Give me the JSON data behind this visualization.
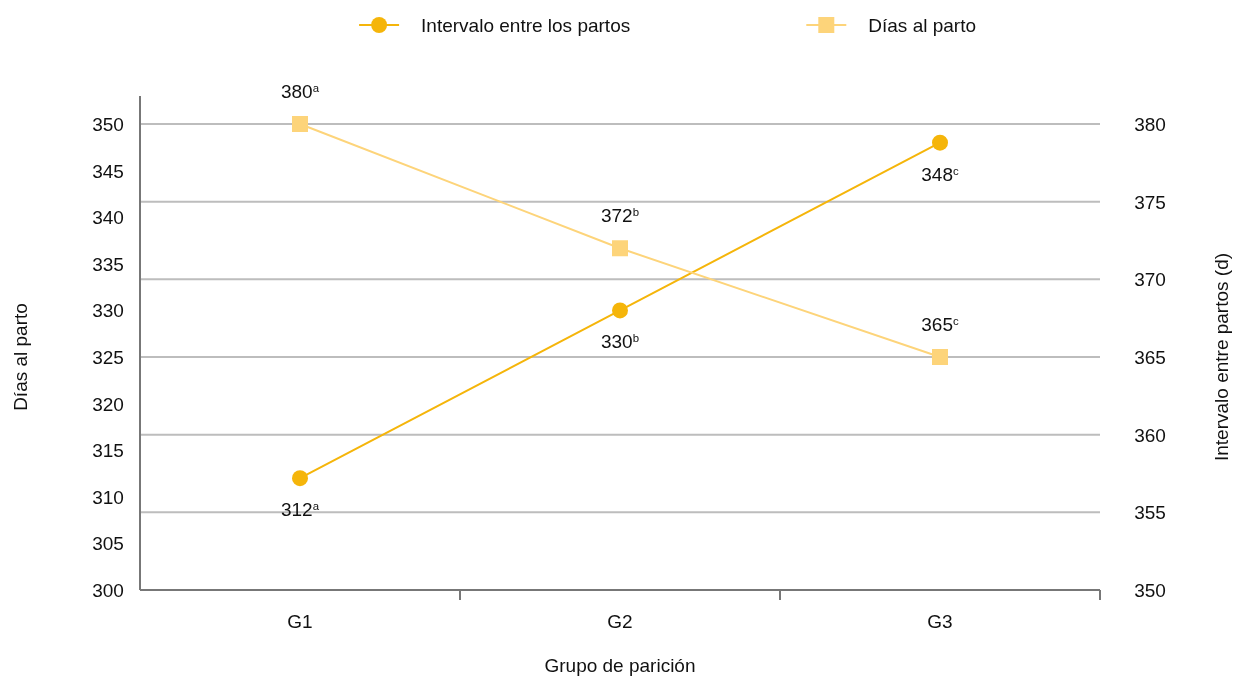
{
  "chart_data": {
    "type": "line",
    "xlabel": "Grupo de parición",
    "ylabel": "Días al parto",
    "y2label": "Intervalo entre partos (d)",
    "categories": [
      "G1",
      "G2",
      "G3"
    ],
    "ylim": [
      300,
      350
    ],
    "yticks": [
      300,
      305,
      310,
      315,
      320,
      325,
      330,
      335,
      340,
      345,
      350
    ],
    "y2lim": [
      350,
      380
    ],
    "y2ticks": [
      350,
      355,
      360,
      365,
      370,
      375,
      380
    ],
    "grid": "y2",
    "legend": "top",
    "series": [
      {
        "name": "Intervalo entre los partos",
        "color": "#f5b50a",
        "values": [
          312,
          330,
          348
        ],
        "marker": "circle",
        "value_labels": [
          "312$^{a}$",
          "330$^{b}$",
          "348$^{c}$"
        ]
      },
      {
        "name": "Días al parto",
        "color": "#fdd47a",
        "values": [
          380,
          372,
          365
        ],
        "marker": "square",
        "axis": "y2",
        "value_labels": [
          "380$^{a}$",
          "372$^{b}$",
          "365$^{c}$"
        ]
      }
    ]
  }
}
